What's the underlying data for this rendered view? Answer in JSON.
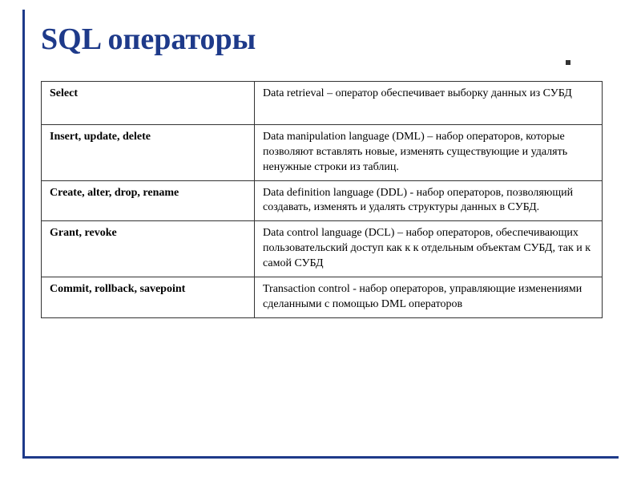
{
  "slide": {
    "title": "SQL операторы",
    "title_color": "#1e3a8a",
    "border_color": "#1e3a8a",
    "background_color": "#ffffff"
  },
  "table": {
    "type": "table",
    "border_color": "#333333",
    "columns": [
      {
        "width_pct": 38,
        "font_weight": "bold"
      },
      {
        "width_pct": 62,
        "font_weight": "normal"
      }
    ],
    "rows": [
      {
        "operator": "Select",
        "description": "Data retrieval – оператор обеспечивает выборку данных из СУБД",
        "extra_padding": true
      },
      {
        "operator": "Insert, update, delete",
        "description": "Data manipulation language (DML) – набор операторов, которые позволяют вставлять новые, изменять существующие и удалять ненужные строки из таблиц."
      },
      {
        "operator": "Create, alter, drop, rename",
        "description": "Data definition language (DDL) - набор операторов, позволяющий создавать, изменять и удалять структуры данных в СУБД."
      },
      {
        "operator": "Grant, revoke",
        "description": "Data control language (DCL) – набор операторов, обеспечивающих пользовательский доступ как к к отдельным объектам СУБД, так и к самой СУБД"
      },
      {
        "operator": "Commit, rollback, savepoint",
        "description": "Transaction control - набор операторов, управляющие изменениями сделанными с помощью DML операторов"
      }
    ],
    "font_size": 14,
    "font_family": "Georgia, serif"
  }
}
